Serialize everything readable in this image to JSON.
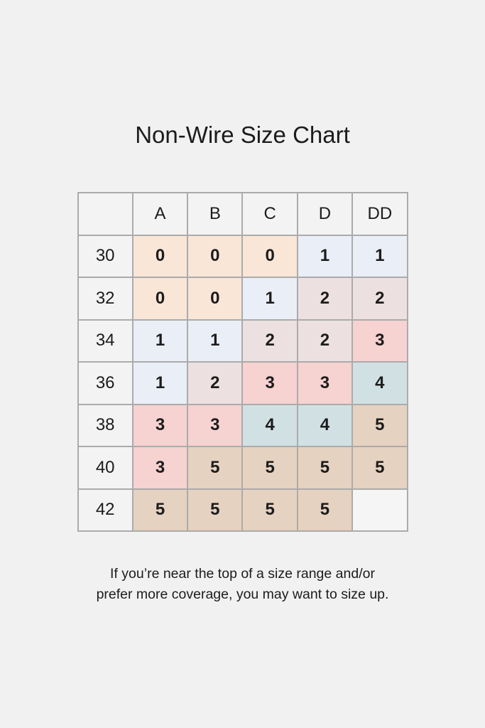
{
  "title": "Non-Wire Size Chart",
  "footnote": {
    "line1": "If you’re near the top of a size range and/or",
    "line2": "prefer more coverage, you may want to size up."
  },
  "colors": {
    "page_background": "#f1f1f1",
    "table_border": "#ababab",
    "header_cell": "#f3f3f3",
    "text": "#1c1c1c",
    "size_0_peach": "#f9e6d7",
    "size_1_blue": "#eaeef6",
    "size_2_mauve": "#ede0e1",
    "size_3_pink": "#f6d2d0",
    "size_4_teal": "#d1e1e3",
    "size_5_tan": "#e6d2c0",
    "empty_cell": "#f5f5f5"
  },
  "chart_data": {
    "type": "table",
    "title": "Non-Wire Size Chart",
    "column_headers": [
      "",
      "A",
      "B",
      "C",
      "D",
      "DD"
    ],
    "row_headers": [
      "30",
      "32",
      "34",
      "36",
      "38",
      "40",
      "42"
    ],
    "legend_note": "cell color encodes the recommended numeric size",
    "rows": [
      {
        "band": "30",
        "cells": [
          {
            "value": "0",
            "color": "size_0_peach"
          },
          {
            "value": "0",
            "color": "size_0_peach"
          },
          {
            "value": "0",
            "color": "size_0_peach"
          },
          {
            "value": "1",
            "color": "size_1_blue"
          },
          {
            "value": "1",
            "color": "size_1_blue"
          }
        ]
      },
      {
        "band": "32",
        "cells": [
          {
            "value": "0",
            "color": "size_0_peach"
          },
          {
            "value": "0",
            "color": "size_0_peach"
          },
          {
            "value": "1",
            "color": "size_1_blue"
          },
          {
            "value": "2",
            "color": "size_2_mauve"
          },
          {
            "value": "2",
            "color": "size_2_mauve"
          }
        ]
      },
      {
        "band": "34",
        "cells": [
          {
            "value": "1",
            "color": "size_1_blue"
          },
          {
            "value": "1",
            "color": "size_1_blue"
          },
          {
            "value": "2",
            "color": "size_2_mauve"
          },
          {
            "value": "2",
            "color": "size_2_mauve"
          },
          {
            "value": "3",
            "color": "size_3_pink"
          }
        ]
      },
      {
        "band": "36",
        "cells": [
          {
            "value": "1",
            "color": "size_1_blue"
          },
          {
            "value": "2",
            "color": "size_2_mauve"
          },
          {
            "value": "3",
            "color": "size_3_pink"
          },
          {
            "value": "3",
            "color": "size_3_pink"
          },
          {
            "value": "4",
            "color": "size_4_teal"
          }
        ]
      },
      {
        "band": "38",
        "cells": [
          {
            "value": "3",
            "color": "size_3_pink"
          },
          {
            "value": "3",
            "color": "size_3_pink"
          },
          {
            "value": "4",
            "color": "size_4_teal"
          },
          {
            "value": "4",
            "color": "size_4_teal"
          },
          {
            "value": "5",
            "color": "size_5_tan"
          }
        ]
      },
      {
        "band": "40",
        "cells": [
          {
            "value": "3",
            "color": "size_3_pink"
          },
          {
            "value": "5",
            "color": "size_5_tan"
          },
          {
            "value": "5",
            "color": "size_5_tan"
          },
          {
            "value": "5",
            "color": "size_5_tan"
          },
          {
            "value": "5",
            "color": "size_5_tan"
          }
        ]
      },
      {
        "band": "42",
        "cells": [
          {
            "value": "5",
            "color": "size_5_tan"
          },
          {
            "value": "5",
            "color": "size_5_tan"
          },
          {
            "value": "5",
            "color": "size_5_tan"
          },
          {
            "value": "5",
            "color": "size_5_tan"
          },
          {
            "value": "",
            "color": "empty_cell"
          }
        ]
      }
    ]
  }
}
